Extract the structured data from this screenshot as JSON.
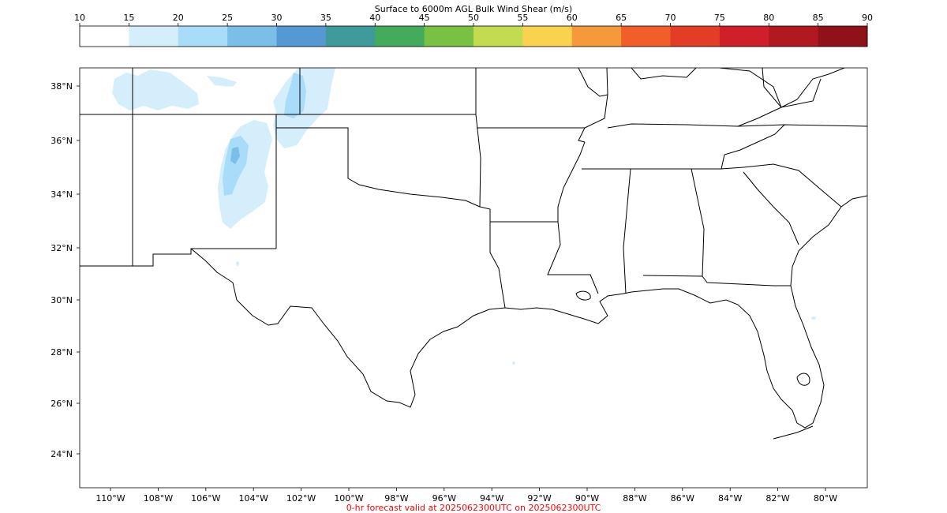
{
  "colorbar": {
    "title": "Surface to 6000m AGL Bulk Wind Shear (m/s)",
    "ticks": [
      "10",
      "15",
      "20",
      "25",
      "30",
      "35",
      "40",
      "45",
      "50",
      "55",
      "60",
      "65",
      "70",
      "75",
      "80",
      "85",
      "90"
    ],
    "colors": [
      "#ffffff",
      "#d4eefb",
      "#a8dcf8",
      "#7bbfe8",
      "#5499d4",
      "#3f9b9a",
      "#45ab5c",
      "#79c142",
      "#c2db4f",
      "#f9d34d",
      "#f6993a",
      "#f15e28",
      "#e33e25",
      "#d11f2a",
      "#b1181f",
      "#8f1219"
    ]
  },
  "map": {
    "lat_labels": [
      "38°N",
      "36°N",
      "34°N",
      "32°N",
      "30°N",
      "28°N",
      "26°N",
      "24°N"
    ],
    "lon_labels": [
      "110°W",
      "108°W",
      "106°W",
      "104°W",
      "102°W",
      "100°W",
      "98°W",
      "96°W",
      "94°W",
      "92°W",
      "90°W",
      "88°W",
      "86°W",
      "84°W",
      "82°W",
      "80°W"
    ]
  },
  "caption": {
    "text": "0-hr forecast valid at 2025062300UTC on 2025062300UTC",
    "color": "#ff0000"
  }
}
